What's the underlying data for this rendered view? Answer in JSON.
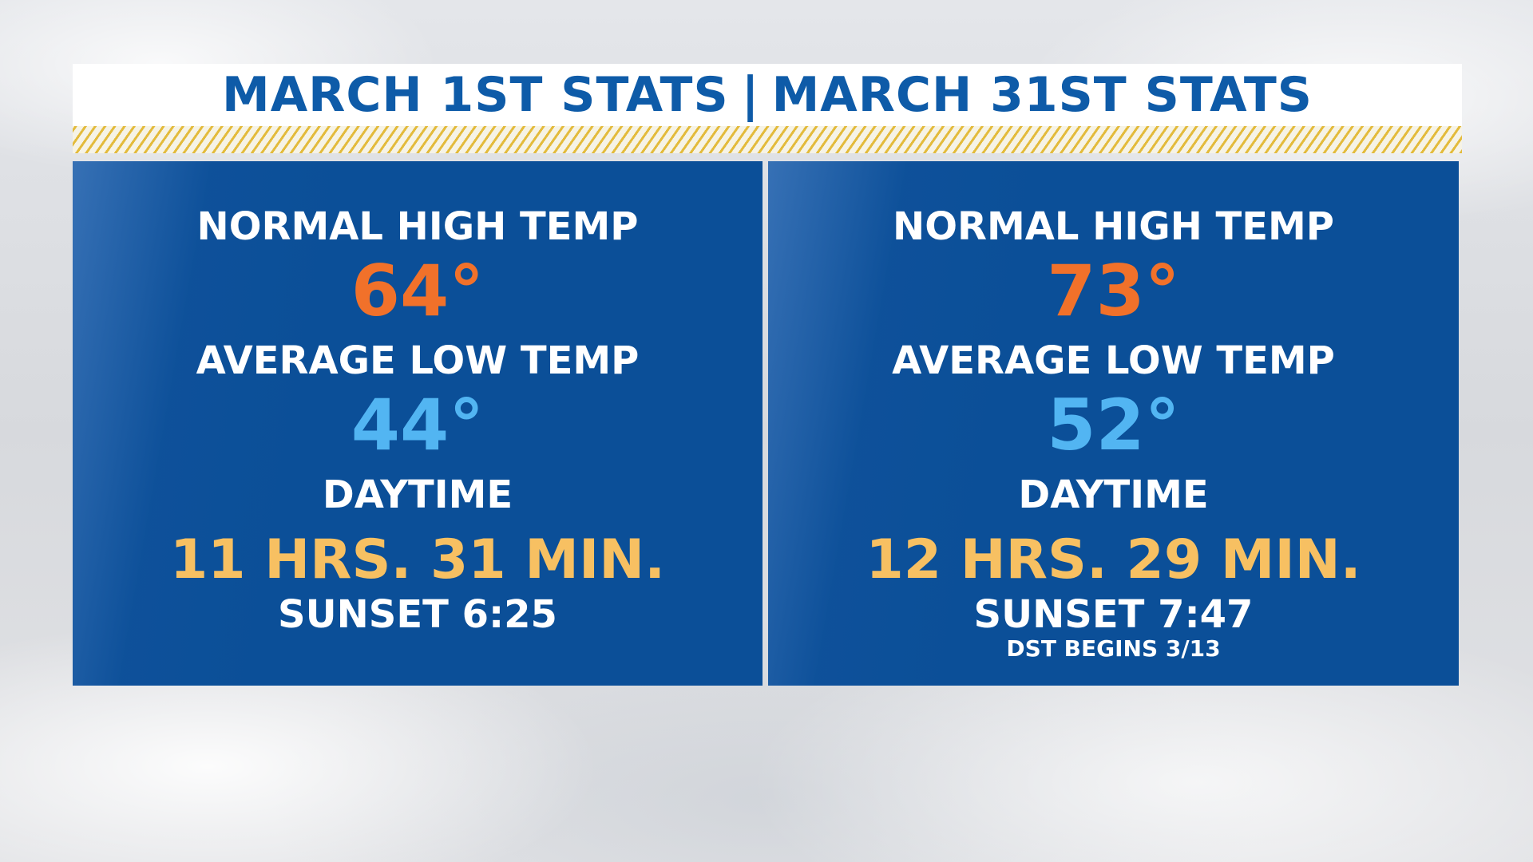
{
  "header": {
    "left_title": "MARCH 1ST STATS",
    "divider": "|",
    "right_title": "MARCH 31ST STATS"
  },
  "panels": {
    "left": {
      "normal_high_label": "NORMAL HIGH TEMP",
      "normal_high_value": "64°",
      "average_low_label": "AVERAGE LOW TEMP",
      "average_low_value": "44°",
      "daytime_label": "DAYTIME",
      "daytime_value": "11 HRS. 31 MIN.",
      "sunset": "SUNSET 6:25"
    },
    "right": {
      "normal_high_label": "NORMAL HIGH TEMP",
      "normal_high_value": "73°",
      "average_low_label": "AVERAGE LOW TEMP",
      "average_low_value": "52°",
      "daytime_label": "DAYTIME",
      "daytime_value": "12 HRS. 29 MIN.",
      "sunset": "SUNSET 7:47",
      "note": "DST BEGINS 3/13"
    }
  },
  "colors": {
    "title_blue": "#0e5ba8",
    "panel_blue": "#0b4f98",
    "high_orange": "#f1712a",
    "low_blue": "#52b5f2",
    "daytime_gold": "#f7c062",
    "hatch_gold": "#e3bb3c"
  }
}
